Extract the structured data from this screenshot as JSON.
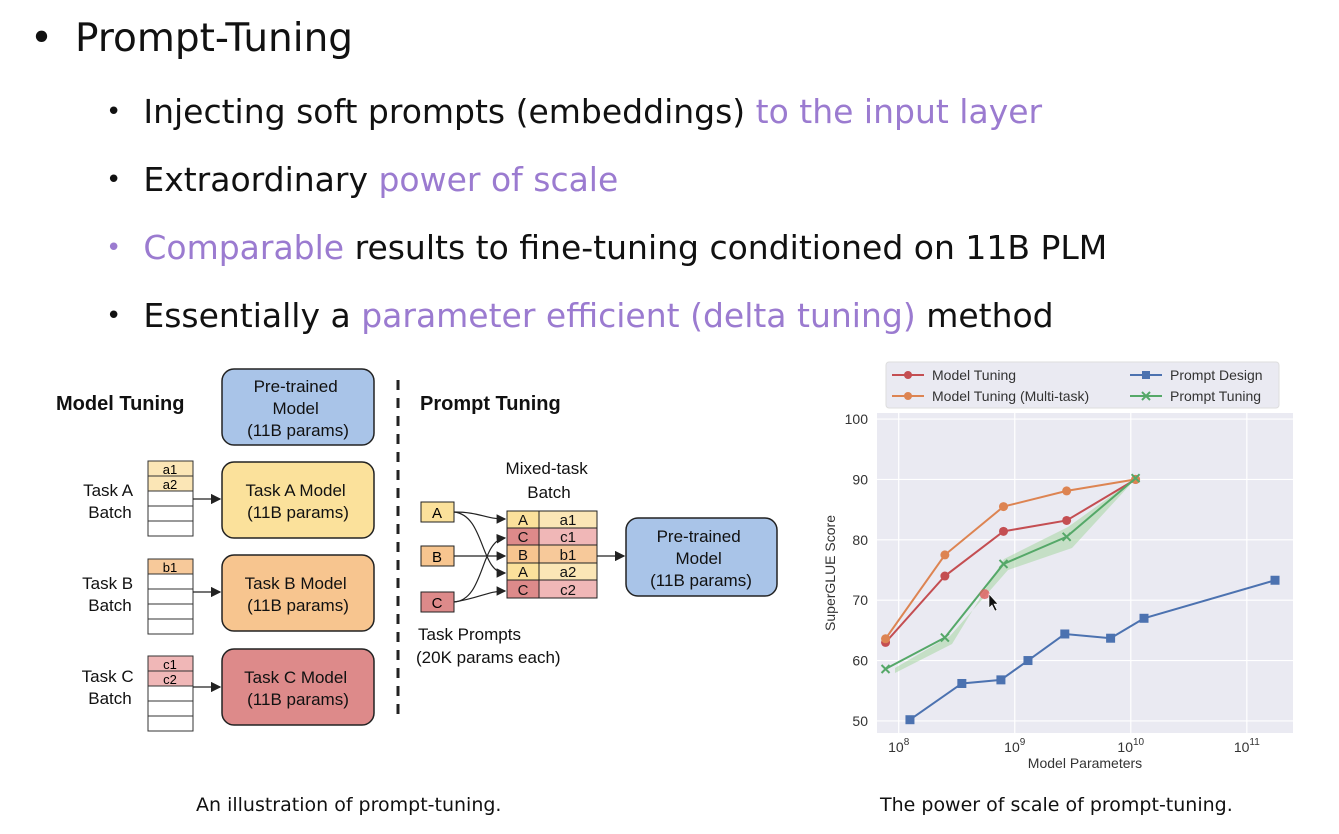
{
  "title": "Prompt-Tuning",
  "bullets": [
    {
      "plain": "Injecting soft prompts (embeddings) ",
      "highlight": "to the input layer"
    },
    {
      "plain": "Extraordinary ",
      "highlight": "power of scale"
    },
    {
      "highlight": "Comparable",
      "plain": " results to fine-tuning conditioned on 11B PLM"
    },
    {
      "plain": "Essentially a ",
      "highlight": "parameter efficient (delta tuning)",
      "tail": " method"
    }
  ],
  "diagram": {
    "model_tuning_label": "Model Tuning",
    "prompt_tuning_label": "Prompt Tuning",
    "pretrained": [
      "Pre-trained",
      "Model",
      "(11B params)"
    ],
    "tasks": [
      {
        "batch": [
          "Task A",
          "Batch"
        ],
        "rows": [
          "a1",
          "a2"
        ],
        "model": [
          "Task A Model",
          "(11B params)"
        ]
      },
      {
        "batch": [
          "Task B",
          "Batch"
        ],
        "rows": [
          "b1"
        ],
        "model": [
          "Task B Model",
          "(11B params)"
        ]
      },
      {
        "batch": [
          "Task C",
          "Batch"
        ],
        "rows": [
          "c1",
          "c2"
        ],
        "model": [
          "Task C Model",
          "(11B params)"
        ]
      }
    ],
    "mixed_batch_label": [
      "Mixed-task",
      "Batch"
    ],
    "prompt_letters": [
      "A",
      "B",
      "C"
    ],
    "mixed_rows": [
      [
        "A",
        "a1"
      ],
      [
        "C",
        "c1"
      ],
      [
        "B",
        "b1"
      ],
      [
        "A",
        "a2"
      ],
      [
        "C",
        "c2"
      ]
    ],
    "task_prompts_label": [
      "Task Prompts",
      "(20K params each)"
    ],
    "caption": "An illustration of prompt-tuning."
  },
  "chart_data": {
    "type": "line",
    "xlabel": "Model Parameters",
    "ylabel": "SuperGLUE Score",
    "xscale": "log",
    "xticks": [
      "10^8",
      "10^9",
      "10^10",
      "10^11"
    ],
    "yticks": [
      50,
      60,
      70,
      80,
      90,
      100
    ],
    "ylim": [
      48,
      101
    ],
    "legend_position": "top",
    "series": [
      {
        "name": "Model Tuning",
        "color": "#c44e52",
        "marker": "circle",
        "x": [
          77000000.0,
          250000000.0,
          800000000.0,
          2800000000.0,
          11000000000.0
        ],
        "y": [
          63,
          74,
          81.4,
          83.2,
          90
        ]
      },
      {
        "name": "Model Tuning (Multi-task)",
        "color": "#dd8452",
        "marker": "circle",
        "x": [
          77000000.0,
          250000000.0,
          800000000.0,
          2800000000.0,
          11000000000.0
        ],
        "y": [
          63.6,
          77.5,
          85.5,
          88.1,
          90
        ]
      },
      {
        "name": "Prompt Design",
        "color": "#4c72b0",
        "marker": "square",
        "x": [
          125000000.0,
          350000000.0,
          760000000.0,
          1300000000.0,
          2700000000.0,
          6700000000.0,
          13000000000.0,
          175000000000.0
        ],
        "y": [
          50.2,
          56.2,
          56.8,
          60,
          64.4,
          63.7,
          67,
          73.3
        ]
      },
      {
        "name": "Prompt Tuning",
        "color": "#55a868",
        "marker": "x",
        "x": [
          77000000.0,
          250000000.0,
          800000000.0,
          2800000000.0,
          11000000000.0
        ],
        "y": [
          58.6,
          63.8,
          76,
          80.5,
          90.2
        ]
      }
    ],
    "caption": "The power of scale of prompt-tuning."
  }
}
